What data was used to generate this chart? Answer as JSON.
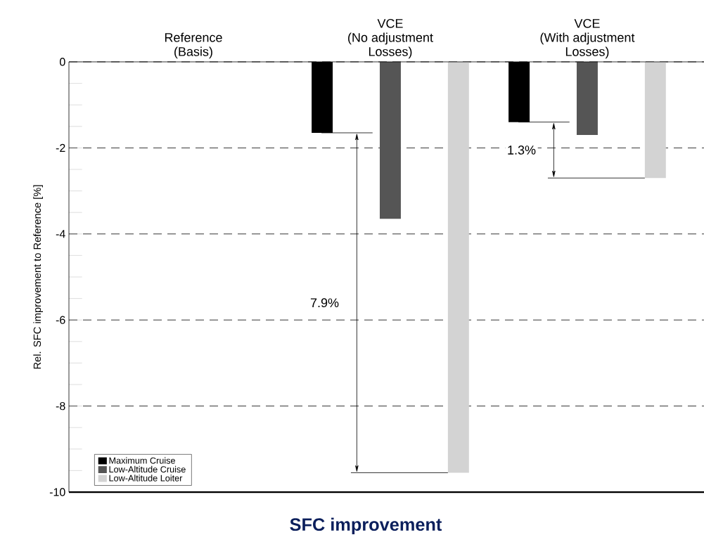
{
  "chart_data": {
    "type": "bar",
    "title": "SFC improvement",
    "ylabel": "Rel. SFC improvement to Reference [%]",
    "categories": [
      "Reference\n(Basis)",
      "VCE\n(No adjustment\nLosses)",
      "VCE\n(With adjustment\nLosses)"
    ],
    "series": [
      {
        "name": "Maximum Cruise",
        "color": "#000000",
        "values": [
          0,
          -1.65,
          -1.4
        ]
      },
      {
        "name": "Low-Altitude Cruise",
        "color": "#555555",
        "values": [
          0,
          -3.65,
          -1.7
        ]
      },
      {
        "name": "Low-Altitude Loiter",
        "color": "#d3d3d3",
        "values": [
          0,
          -9.55,
          -2.7
        ]
      }
    ],
    "ylim": [
      -10,
      0
    ],
    "yticks": [
      -10,
      -8,
      -6,
      -4,
      -2,
      0
    ],
    "grid": "y",
    "legend": "bottom left",
    "annotations": [
      "7.9%",
      "1.3%"
    ]
  }
}
